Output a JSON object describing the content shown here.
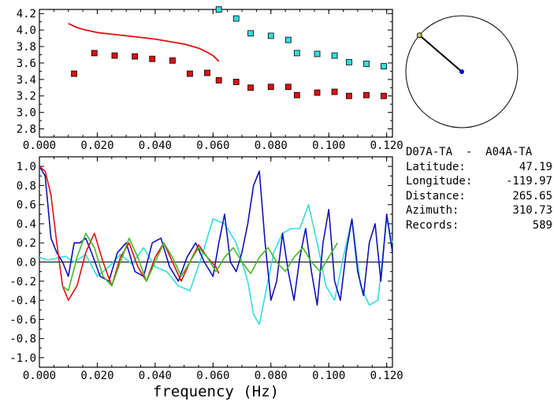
{
  "chart_data": [
    {
      "type": "scatter",
      "xlim": [
        0.0,
        0.122
      ],
      "ylim": [
        2.7,
        4.25
      ],
      "x_ticks": [
        "0.000",
        "0.020",
        "0.040",
        "0.060",
        "0.080",
        "0.100",
        "0.120"
      ],
      "y_ticks": [
        "2.8",
        "3.0",
        "3.2",
        "3.4",
        "3.6",
        "3.8",
        "4.0",
        "4.2"
      ],
      "series": [
        {
          "style": "line",
          "color": "#dd1111",
          "x": [
            0.01,
            0.013,
            0.016,
            0.02,
            0.025,
            0.03,
            0.035,
            0.04,
            0.045,
            0.05,
            0.055,
            0.058,
            0.06,
            0.062
          ],
          "y": [
            4.08,
            4.03,
            4.0,
            3.97,
            3.95,
            3.93,
            3.91,
            3.89,
            3.86,
            3.83,
            3.78,
            3.73,
            3.69,
            3.62
          ]
        },
        {
          "style": "square",
          "color": "#dd1111",
          "x": [
            0.012,
            0.019,
            0.026,
            0.033,
            0.039,
            0.046,
            0.052,
            0.058,
            0.062,
            0.068,
            0.073,
            0.08,
            0.086,
            0.089,
            0.096,
            0.102,
            0.107,
            0.113,
            0.119
          ],
          "y": [
            3.47,
            3.72,
            3.69,
            3.68,
            3.65,
            3.63,
            3.47,
            3.48,
            3.39,
            3.37,
            3.3,
            3.31,
            3.31,
            3.21,
            3.24,
            3.25,
            3.2,
            3.21,
            3.2
          ]
        },
        {
          "style": "square",
          "color": "#33dddd",
          "x": [
            0.062,
            0.068,
            0.073,
            0.08,
            0.086,
            0.089,
            0.096,
            0.102,
            0.107,
            0.113,
            0.119
          ],
          "y": [
            4.25,
            4.14,
            3.96,
            3.93,
            3.88,
            3.72,
            3.71,
            3.69,
            3.61,
            3.59,
            3.56
          ]
        }
      ]
    },
    {
      "type": "line",
      "xlim": [
        0.0,
        0.122
      ],
      "ylim": [
        -1.1,
        1.1
      ],
      "xlabel": "frequency (Hz)",
      "x_ticks": [
        "0.000",
        "0.020",
        "0.040",
        "0.060",
        "0.080",
        "0.100",
        "0.120"
      ],
      "y_ticks": [
        "1.0",
        "0.8",
        "0.6",
        "0.4",
        "0.2",
        "0.0",
        "-0.2",
        "-0.4",
        "-0.6",
        "-0.8",
        "-1.0"
      ],
      "series": [
        {
          "color": "#33dddd",
          "x": [
            0.0,
            0.003,
            0.006,
            0.009,
            0.012,
            0.016,
            0.02,
            0.024,
            0.028,
            0.032,
            0.036,
            0.04,
            0.044,
            0.048,
            0.052,
            0.056,
            0.06,
            0.064,
            0.068,
            0.072,
            0.074,
            0.076,
            0.078,
            0.081,
            0.084,
            0.087,
            0.09,
            0.093,
            0.096,
            0.099,
            0.102,
            0.105,
            0.108,
            0.111,
            0.114,
            0.117,
            0.12,
            0.122
          ],
          "y": [
            0.05,
            0.02,
            0.04,
            0.06,
            0.0,
            0.08,
            -0.15,
            -0.05,
            0.08,
            -0.02,
            0.15,
            -0.05,
            -0.1,
            -0.25,
            -0.3,
            0.05,
            0.45,
            0.4,
            0.2,
            -0.2,
            -0.55,
            -0.65,
            -0.35,
            0.1,
            0.3,
            0.35,
            0.35,
            0.6,
            0.2,
            -0.25,
            -0.4,
            0.05,
            0.45,
            -0.25,
            -0.45,
            -0.4,
            0.45,
            0.2
          ]
        },
        {
          "color": "#1111bb",
          "x": [
            0.0,
            0.002,
            0.004,
            0.006,
            0.008,
            0.01,
            0.012,
            0.014,
            0.016,
            0.018,
            0.021,
            0.024,
            0.027,
            0.03,
            0.033,
            0.036,
            0.039,
            0.042,
            0.045,
            0.048,
            0.051,
            0.054,
            0.057,
            0.06,
            0.062,
            0.064,
            0.066,
            0.068,
            0.07,
            0.072,
            0.074,
            0.076,
            0.078,
            0.08,
            0.082,
            0.084,
            0.086,
            0.088,
            0.09,
            0.092,
            0.094,
            0.096,
            0.098,
            0.1,
            0.102,
            0.104,
            0.106,
            0.108,
            0.11,
            0.112,
            0.114,
            0.116,
            0.118,
            0.12,
            0.122
          ],
          "y": [
            1.0,
            0.9,
            0.25,
            0.1,
            0.0,
            -0.15,
            0.2,
            0.2,
            0.25,
            0.1,
            -0.15,
            -0.2,
            0.1,
            0.2,
            -0.1,
            -0.15,
            0.2,
            0.25,
            -0.05,
            -0.2,
            0.05,
            0.2,
            0.0,
            -0.15,
            0.2,
            0.5,
            0.0,
            -0.1,
            0.1,
            0.4,
            0.8,
            0.95,
            0.2,
            -0.4,
            -0.2,
            0.3,
            -0.1,
            -0.4,
            0.05,
            0.35,
            -0.1,
            -0.45,
            0.2,
            0.55,
            -0.2,
            -0.4,
            0.1,
            0.45,
            -0.1,
            -0.35,
            0.2,
            0.4,
            -0.2,
            0.5,
            0.1
          ]
        },
        {
          "color": "#dd1111",
          "x": [
            0.0,
            0.002,
            0.004,
            0.006,
            0.008,
            0.01,
            0.013,
            0.016,
            0.019,
            0.022,
            0.025,
            0.028,
            0.031,
            0.034,
            0.037,
            0.04,
            0.043,
            0.046,
            0.049,
            0.052,
            0.055,
            0.058,
            0.061,
            0.062
          ],
          "y": [
            1.0,
            0.95,
            0.7,
            0.2,
            -0.25,
            -0.4,
            -0.25,
            0.1,
            0.3,
            0.0,
            -0.25,
            0.05,
            0.2,
            -0.05,
            -0.2,
            0.05,
            0.2,
            0.0,
            -0.2,
            0.0,
            0.18,
            0.05,
            -0.05,
            -0.12
          ]
        },
        {
          "color": "#44bb22",
          "x": [
            0.008,
            0.01,
            0.013,
            0.016,
            0.019,
            0.022,
            0.025,
            0.028,
            0.031,
            0.034,
            0.037,
            0.04,
            0.043,
            0.046,
            0.049,
            0.052,
            0.055,
            0.058,
            0.061,
            0.064,
            0.067,
            0.07,
            0.073,
            0.076,
            0.079,
            0.082,
            0.085,
            0.088,
            0.091,
            0.094,
            0.097,
            0.1,
            0.103
          ],
          "y": [
            -0.25,
            -0.3,
            0.05,
            0.3,
            0.15,
            -0.15,
            -0.25,
            0.0,
            0.25,
            0.05,
            -0.2,
            0.0,
            0.2,
            0.05,
            -0.15,
            0.0,
            0.15,
            0.05,
            -0.1,
            0.05,
            0.15,
            0.0,
            -0.12,
            0.05,
            0.15,
            0.0,
            -0.1,
            0.05,
            0.15,
            0.0,
            -0.1,
            0.05,
            0.2
          ]
        }
      ]
    }
  ],
  "inset": {
    "type": "azimuth-dial",
    "azimuth_deg": 310.73,
    "needle_color": "#000000",
    "center_color": "#1111bb",
    "tip_color": "#cccc44"
  },
  "info": {
    "pair": "D07A-TA  -  A04A-TA",
    "fields": [
      {
        "label": "Latitude:",
        "value": "47.19"
      },
      {
        "label": "Longitude:",
        "value": "-119.97"
      },
      {
        "label": "Distance:",
        "value": "265.65"
      },
      {
        "label": "Azimuth:",
        "value": "310.73"
      },
      {
        "label": "Records:",
        "value": "589"
      }
    ]
  }
}
